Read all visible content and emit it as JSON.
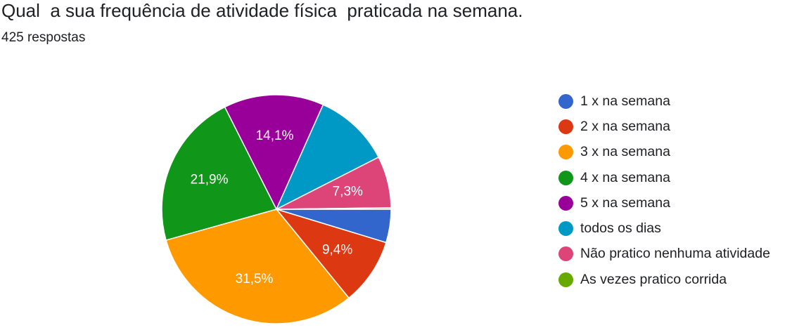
{
  "header": {
    "title": "Qual  a sua frequência de atividade física  praticada na semana.",
    "responses": "425 respostas"
  },
  "chart_data": {
    "type": "pie",
    "categories": [
      "1 x na semana",
      "2 x na semana",
      "3 x na semana",
      "4 x na semana",
      "5 x na semana",
      "todos os dias",
      "Não pratico nenhuma atividade",
      "As vezes pratico corrida"
    ],
    "values": [
      4.7,
      9.4,
      31.5,
      21.9,
      14.1,
      10.8,
      7.3,
      0.2
    ],
    "data_labels": [
      "",
      "9,4%",
      "31,5%",
      "21,9%",
      "14,1%",
      "",
      "7,3%",
      ""
    ],
    "colors": [
      "#3366cc",
      "#dc3912",
      "#ff9900",
      "#109618",
      "#990099",
      "#0099c6",
      "#dd4477",
      "#66aa00"
    ],
    "start_angle_deg": 90,
    "direction": "clockwise",
    "legend_position": "right"
  }
}
